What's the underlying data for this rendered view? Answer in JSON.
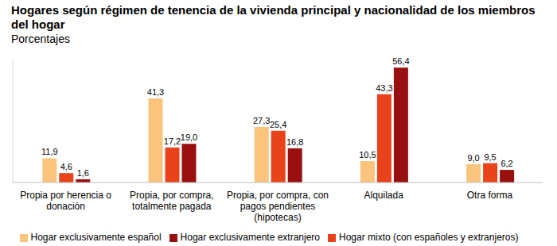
{
  "chart_data": {
    "type": "bar",
    "title": "Hogares según régimen de tenencia de la vivienda principal y nacionalidad de los miembros del hogar",
    "subtitle": "Porcentajes",
    "categories": [
      "Propia por herencia o donación",
      "Propia, por compra, totalmente pagada",
      "Propia, por compra, con pagos pendientes (hipotecas)",
      "Alquilada",
      "Otra forma"
    ],
    "series": [
      {
        "name": "Hogar exclusivamente español",
        "color": "#FAC47C",
        "values": [
          11.9,
          41.3,
          27.3,
          10.5,
          9.0
        ],
        "value_labels": [
          "11,9",
          "41,3",
          "27,3",
          "10,5",
          "9,0"
        ]
      },
      {
        "name": "Hogar mixto (con españoles y extranjeros)",
        "color": "#E8431A",
        "values": [
          4.6,
          17.2,
          25.4,
          43.3,
          9.5
        ],
        "value_labels": [
          "4,6",
          "17,2",
          "25,4",
          "43,3",
          "9,5"
        ]
      },
      {
        "name": "Hogar exclusivamente extranjero",
        "color": "#9A0F0F",
        "values": [
          1.6,
          19.0,
          16.8,
          56.4,
          6.2
        ],
        "value_labels": [
          "1,6",
          "19,0",
          "16,8",
          "56,4",
          "6,2"
        ]
      }
    ],
    "ylim": [
      0,
      60
    ],
    "grid": false,
    "legend": "bottom",
    "data_labels": true,
    "tick_labels": "x"
  }
}
